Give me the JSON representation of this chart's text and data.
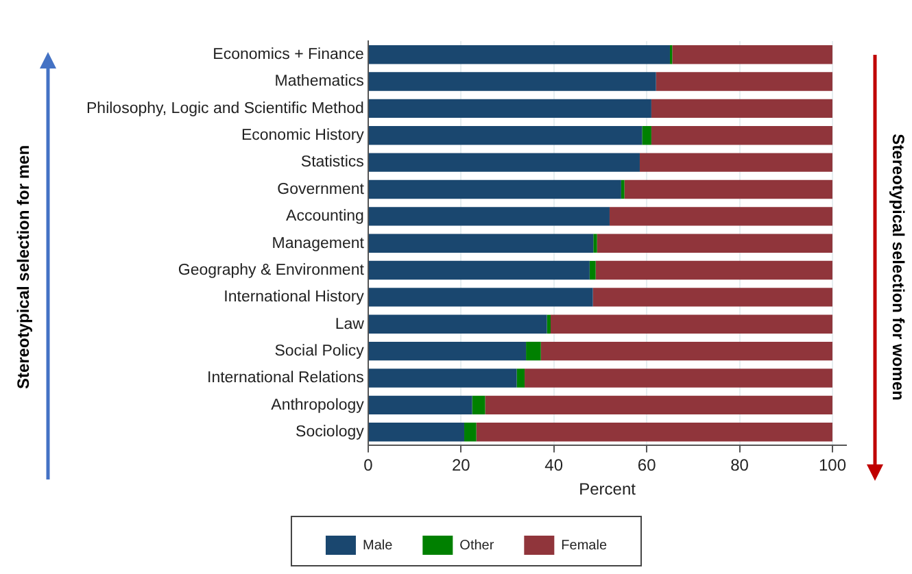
{
  "chart_data": {
    "type": "bar",
    "orientation": "horizontal",
    "stacked": true,
    "xlabel": "Percent",
    "categories": [
      "Economics + Finance",
      "Mathematics",
      "Philosophy, Logic and Scientific Method",
      "Economic History",
      "Statistics",
      "Government",
      "Accounting",
      "Management",
      "Geography & Environment",
      "International History",
      "Law",
      "Social Policy",
      "International Relations",
      "Anthropology",
      "Sociology"
    ],
    "series": [
      {
        "name": "Male",
        "color": "#1a476f",
        "values": [
          65,
          62,
          61,
          59,
          58.5,
          54.5,
          52,
          48.5,
          47.7,
          48.4,
          38.5,
          34,
          32,
          22.4,
          20.7
        ]
      },
      {
        "name": "Other",
        "color": "#008000",
        "values": [
          0.5,
          null,
          null,
          2,
          null,
          0.7,
          null,
          0.8,
          1.3,
          null,
          0.8,
          3.2,
          1.7,
          2.8,
          2.6
        ]
      },
      {
        "name": "Female",
        "color": "#90353b",
        "values": [
          34.5,
          38,
          39,
          39,
          41.5,
          44.8,
          48,
          50.7,
          51,
          51.6,
          60.7,
          62.8,
          66.3,
          74.8,
          76.7
        ]
      }
    ],
    "xlim": [
      0,
      103
    ],
    "xticks": [
      0,
      20,
      40,
      60,
      80,
      100
    ],
    "grid": "x",
    "legend": "bottom",
    "annotations": [
      "Stereotypical selection for men",
      "Stereotypical selection for women"
    ]
  }
}
